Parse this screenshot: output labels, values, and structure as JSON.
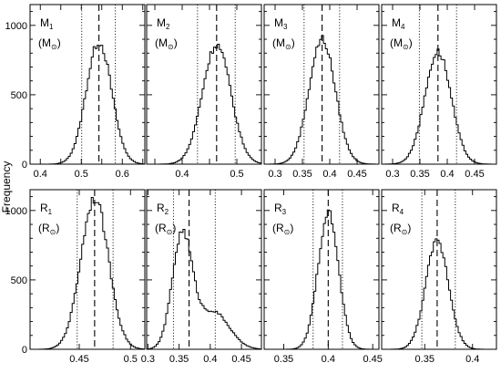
{
  "figure": {
    "ylabel": "Frequency"
  },
  "chart_data": [
    {
      "type": "histogram",
      "panel": "M1",
      "label_line1": "M",
      "label_sub": "1",
      "label_line2": "(M",
      "label_sym": "⊙",
      "label_close": ")",
      "xlim": [
        0.375,
        0.655
      ],
      "ylim": [
        0,
        1150
      ],
      "xticks": [
        0.4,
        0.45,
        0.5,
        0.55,
        0.6,
        0.65
      ],
      "xticklabels": [
        "0.4",
        "",
        "0.5",
        "",
        "0.6",
        ""
      ],
      "yticks": [
        0,
        100,
        200,
        300,
        400,
        500,
        600,
        700,
        800,
        900,
        1000,
        1100
      ],
      "yticklabels": [
        "0",
        "",
        "",
        "",
        "",
        "500",
        "",
        "",
        "",
        "",
        "1000",
        ""
      ],
      "center": 0.543,
      "sigma": 0.031,
      "peak": 880,
      "median": 0.543,
      "lower": 0.501,
      "upper": 0.583
    },
    {
      "type": "histogram",
      "panel": "M2",
      "label_line1": "M",
      "label_sub": "2",
      "label_line2": "(M",
      "label_sym": "⊙",
      "label_close": ")",
      "xlim": [
        0.335,
        0.545
      ],
      "ylim": [
        0,
        1150
      ],
      "xticks": [
        0.35,
        0.4,
        0.45,
        0.5
      ],
      "xticklabels": [
        "",
        "0.4",
        "",
        "0.5"
      ],
      "yticks": [
        0,
        100,
        200,
        300,
        400,
        500,
        600,
        700,
        800,
        900,
        1000,
        1100
      ],
      "yticklabels": [
        "",
        "",
        "",
        "",
        "",
        "",
        "",
        "",
        "",
        "",
        "",
        ""
      ],
      "center": 0.463,
      "sigma": 0.026,
      "peak": 860,
      "median": 0.463,
      "lower": 0.428,
      "upper": 0.497
    },
    {
      "type": "histogram",
      "panel": "M3",
      "label_line1": "M",
      "label_sub": "3",
      "label_line2": "(M",
      "label_sym": "⊙",
      "label_close": ")",
      "xlim": [
        0.28,
        0.49
      ],
      "ylim": [
        0,
        1150
      ],
      "xticks": [
        0.3,
        0.35,
        0.4,
        0.45
      ],
      "xticklabels": [
        "0.3",
        "0.35",
        "0.4",
        "0.45"
      ],
      "yticks": [
        0,
        100,
        200,
        300,
        400,
        500,
        600,
        700,
        800,
        900,
        1000,
        1100
      ],
      "yticklabels": [
        "",
        "",
        "",
        "",
        "",
        "",
        "",
        "",
        "",
        "",
        "",
        ""
      ],
      "center": 0.386,
      "sigma": 0.024,
      "peak": 900,
      "median": 0.386,
      "lower": 0.353,
      "upper": 0.418
    },
    {
      "type": "histogram",
      "panel": "M4",
      "label_line1": "M",
      "label_sub": "4",
      "label_line2": "(M",
      "label_sym": "⊙",
      "label_close": ")",
      "xlim": [
        0.28,
        0.49
      ],
      "ylim": [
        0,
        1150
      ],
      "xticks": [
        0.3,
        0.35,
        0.4,
        0.45
      ],
      "xticklabels": [
        "0.3",
        "0.35",
        "0.4",
        "0.45"
      ],
      "yticks": [
        0,
        100,
        200,
        300,
        400,
        500,
        600,
        700,
        800,
        900,
        1000,
        1100
      ],
      "yticklabels": [
        "",
        "",
        "",
        "",
        "",
        "",
        "",
        "",
        "",
        "",
        "",
        ""
      ],
      "center": 0.383,
      "sigma": 0.024,
      "peak": 810,
      "median": 0.383,
      "lower": 0.349,
      "upper": 0.417
    },
    {
      "type": "histogram",
      "panel": "R1",
      "label_line1": "R",
      "label_sub": "1",
      "label_line2": "(R",
      "label_sym": "⊙",
      "label_close": ")",
      "xlim": [
        0.402,
        0.514
      ],
      "ylim": [
        0,
        1150
      ],
      "xticks": [
        0.45,
        0.5
      ],
      "xticklabels": [
        "0.45",
        "0.5"
      ],
      "yticks": [
        0,
        100,
        200,
        300,
        400,
        500,
        600,
        700,
        800,
        900,
        1000,
        1100
      ],
      "yticklabels": [
        "0",
        "",
        "",
        "",
        "",
        "500",
        "",
        "",
        "",
        "",
        "1000",
        ""
      ],
      "center": 0.465,
      "sigma": 0.0135,
      "peak": 1090,
      "median": 0.465,
      "lower": 0.448,
      "upper": 0.483
    },
    {
      "type": "histogram",
      "panel": "R2",
      "label_line1": "R",
      "label_sub": "2",
      "label_line2": "(R",
      "label_sym": "⊙",
      "label_close": ")",
      "xlim": [
        0.298,
        0.482
      ],
      "ylim": [
        0,
        1150
      ],
      "xticks": [
        0.3,
        0.35,
        0.4,
        0.45
      ],
      "xticklabels": [
        "0.3",
        "0.35",
        "0.4",
        "0.45"
      ],
      "yticks": [
        0,
        100,
        200,
        300,
        400,
        500,
        600,
        700,
        800,
        900,
        1000,
        1100
      ],
      "yticklabels": [
        "",
        "",
        "",
        "",
        "",
        "",
        "",
        "",
        "",
        "",
        "",
        ""
      ],
      "center": 0.355,
      "sigma": 0.016,
      "peak": 820,
      "center2": 0.405,
      "sigma2": 0.025,
      "peak2": 270,
      "median": 0.366,
      "lower": 0.341,
      "upper": 0.408
    },
    {
      "type": "histogram",
      "panel": "R3",
      "label_line1": "R",
      "label_sub": "3",
      "label_line2": "(R",
      "label_sym": "⊙",
      "label_close": ")",
      "xlim": [
        0.328,
        0.457
      ],
      "ylim": [
        0,
        1150
      ],
      "xticks": [
        0.35,
        0.4,
        0.45
      ],
      "xticklabels": [
        "0.35",
        "0.4",
        "0.45"
      ],
      "yticks": [
        0,
        100,
        200,
        300,
        400,
        500,
        600,
        700,
        800,
        900,
        1000,
        1100
      ],
      "yticklabels": [
        "",
        "",
        "",
        "",
        "",
        "",
        "",
        "",
        "",
        "",
        "",
        ""
      ],
      "center": 0.4,
      "sigma": 0.0115,
      "peak": 985,
      "median": 0.4,
      "lower": 0.383,
      "upper": 0.416
    },
    {
      "type": "histogram",
      "panel": "R4",
      "label_line1": "R",
      "label_sub": "4",
      "label_line2": "(R",
      "label_sym": "⊙",
      "label_close": ")",
      "xlim": [
        0.305,
        0.425
      ],
      "ylim": [
        0,
        1150
      ],
      "xticks": [
        0.35,
        0.4
      ],
      "xticklabels": [
        "0.35",
        "0.4"
      ],
      "yticks": [
        0,
        100,
        200,
        300,
        400,
        500,
        600,
        700,
        800,
        900,
        1000,
        1100
      ],
      "yticklabels": [
        "",
        "",
        "",
        "",
        "",
        "",
        "",
        "",
        "",
        "",
        "",
        ""
      ],
      "center": 0.363,
      "sigma": 0.012,
      "peak": 780,
      "median": 0.363,
      "lower": 0.347,
      "upper": 0.382
    }
  ]
}
